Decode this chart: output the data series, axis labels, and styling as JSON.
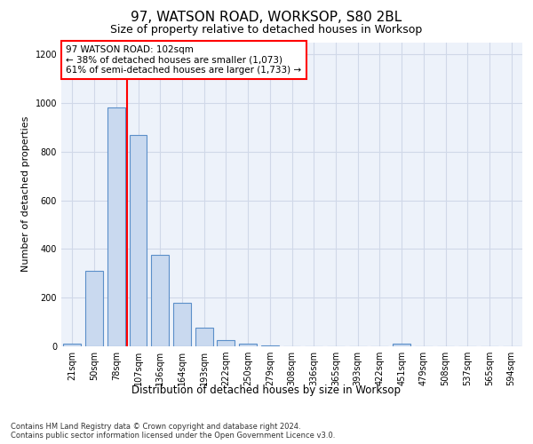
{
  "title": "97, WATSON ROAD, WORKSOP, S80 2BL",
  "subtitle": "Size of property relative to detached houses in Worksop",
  "xlabel": "Distribution of detached houses by size in Worksop",
  "ylabel": "Number of detached properties",
  "bin_labels": [
    "21sqm",
    "50sqm",
    "78sqm",
    "107sqm",
    "136sqm",
    "164sqm",
    "193sqm",
    "222sqm",
    "250sqm",
    "279sqm",
    "308sqm",
    "336sqm",
    "365sqm",
    "393sqm",
    "422sqm",
    "451sqm",
    "479sqm",
    "508sqm",
    "537sqm",
    "565sqm",
    "594sqm"
  ],
  "bar_values": [
    10,
    310,
    980,
    870,
    375,
    180,
    75,
    25,
    10,
    2,
    1,
    1,
    1,
    0,
    0,
    10,
    0,
    0,
    0,
    0,
    0
  ],
  "bar_color": "#c9d9ef",
  "bar_edge_color": "#5b8fc9",
  "grid_color": "#d0d8e8",
  "property_bin_index": 3,
  "red_line_color": "#ff0000",
  "annotation_text": "97 WATSON ROAD: 102sqm\n← 38% of detached houses are smaller (1,073)\n61% of semi-detached houses are larger (1,733) →",
  "annotation_box_color": "#ffffff",
  "annotation_box_edge": "#ff0000",
  "footer_text": "Contains HM Land Registry data © Crown copyright and database right 2024.\nContains public sector information licensed under the Open Government Licence v3.0.",
  "ylim": [
    0,
    1250
  ],
  "yticks": [
    0,
    200,
    400,
    600,
    800,
    1000,
    1200
  ],
  "background_color": "#edf2fa",
  "title_fontsize": 11,
  "subtitle_fontsize": 9,
  "ylabel_fontsize": 8,
  "xlabel_fontsize": 8.5,
  "tick_fontsize": 7,
  "annotation_fontsize": 7.5,
  "footer_fontsize": 6.0
}
